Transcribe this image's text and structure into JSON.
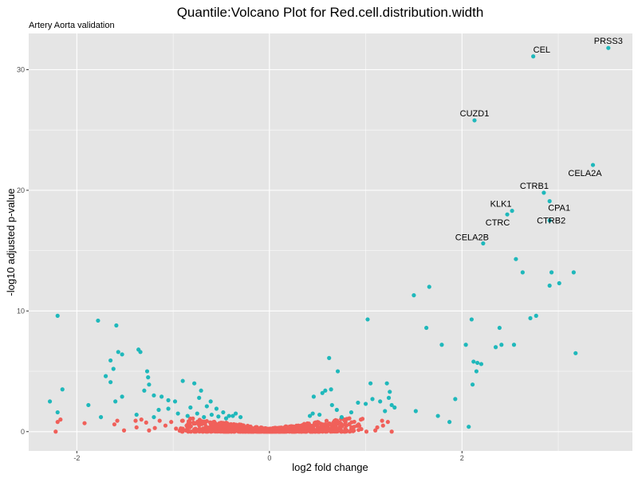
{
  "chart_data": {
    "type": "scatter",
    "title": "Quantile:Volcano Plot for Red.cell.distribution.width",
    "subtitle": "Artery Aorta validation",
    "xlabel": "log2 fold change",
    "ylabel": "-log10 adjusted p-value",
    "xlim": [
      -2.5,
      3.77
    ],
    "ylim": [
      -1.6,
      33.0
    ],
    "x_ticks": [
      -2,
      0,
      2
    ],
    "x_tick_labels": [
      "-2",
      "0",
      "2"
    ],
    "y_ticks": [
      0,
      10,
      20,
      30
    ],
    "y_tick_labels": [
      "0",
      "10",
      "20",
      "30"
    ],
    "grid": true,
    "colors": {
      "panel": "#e5e5e5",
      "grid": "#ffffff",
      "significant": "#1fb8bb",
      "not_significant": "#f0605a"
    },
    "labeled_points": [
      {
        "label": "PRSS3",
        "x": 3.52,
        "y": 31.8
      },
      {
        "label": "CEL",
        "x": 2.74,
        "y": 31.1
      },
      {
        "label": "CUZD1",
        "x": 2.13,
        "y": 25.8
      },
      {
        "label": "CELA2A",
        "x": 3.36,
        "y": 22.1
      },
      {
        "label": "CTRB1",
        "x": 2.85,
        "y": 19.8
      },
      {
        "label": "CPA1",
        "x": 2.91,
        "y": 19.1
      },
      {
        "label": "KLK1",
        "x": 2.52,
        "y": 18.3
      },
      {
        "label": "CTRC",
        "x": 2.47,
        "y": 18.0
      },
      {
        "label": "CTRB2",
        "x": 2.91,
        "y": 17.5
      },
      {
        "label": "CELA2B",
        "x": 2.22,
        "y": 15.6
      }
    ],
    "significant_points": [
      [
        -2.2,
        9.6
      ],
      [
        -1.78,
        9.2
      ],
      [
        -1.59,
        8.8
      ],
      [
        -1.36,
        6.8
      ],
      [
        -1.34,
        6.6
      ],
      [
        -1.57,
        6.6
      ],
      [
        -1.53,
        6.4
      ],
      [
        -1.65,
        5.9
      ],
      [
        -1.7,
        4.6
      ],
      [
        -1.62,
        5.2
      ],
      [
        -1.65,
        4.1
      ],
      [
        -1.53,
        2.9
      ],
      [
        -1.27,
        5.0
      ],
      [
        -1.26,
        4.5
      ],
      [
        -1.25,
        3.9
      ],
      [
        -1.3,
        3.4
      ],
      [
        -1.2,
        3.0
      ],
      [
        -1.12,
        2.9
      ],
      [
        -1.05,
        2.6
      ],
      [
        -0.98,
        2.5
      ],
      [
        -0.9,
        4.2
      ],
      [
        -0.78,
        4.0
      ],
      [
        -0.71,
        3.4
      ],
      [
        -0.73,
        2.8
      ],
      [
        -0.82,
        2.0
      ],
      [
        -0.65,
        2.1
      ],
      [
        -0.61,
        2.5
      ],
      [
        -0.55,
        1.9
      ],
      [
        -0.48,
        1.6
      ],
      [
        -0.42,
        1.3
      ],
      [
        -1.15,
        1.8
      ],
      [
        -1.05,
        1.9
      ],
      [
        -0.95,
        1.5
      ],
      [
        -1.38,
        1.4
      ],
      [
        -1.2,
        1.2
      ],
      [
        -0.85,
        1.3
      ],
      [
        -0.75,
        1.5
      ],
      [
        -0.68,
        1.2
      ],
      [
        -0.6,
        1.4
      ],
      [
        -0.35,
        1.5
      ],
      [
        -0.45,
        1.1
      ],
      [
        -0.3,
        1.2
      ],
      [
        -2.28,
        2.5
      ],
      [
        -2.15,
        3.5
      ],
      [
        -2.2,
        1.6
      ],
      [
        -1.88,
        2.2
      ],
      [
        -1.6,
        2.5
      ],
      [
        -1.75,
        1.2
      ],
      [
        -0.53,
        1.25
      ],
      [
        -0.38,
        1.3
      ],
      [
        0.62,
        6.1
      ],
      [
        0.71,
        5.0
      ],
      [
        0.64,
        3.5
      ],
      [
        0.58,
        3.4
      ],
      [
        0.55,
        3.2
      ],
      [
        0.52,
        1.4
      ],
      [
        0.46,
        2.9
      ],
      [
        0.45,
        1.5
      ],
      [
        0.42,
        1.3
      ],
      [
        0.65,
        2.2
      ],
      [
        0.7,
        1.8
      ],
      [
        0.75,
        1.2
      ],
      [
        0.85,
        1.6
      ],
      [
        1.02,
        9.3
      ],
      [
        1.05,
        4.0
      ],
      [
        1.07,
        2.7
      ],
      [
        1.0,
        2.3
      ],
      [
        0.92,
        2.4
      ],
      [
        1.22,
        4.0
      ],
      [
        1.25,
        3.3
      ],
      [
        1.24,
        2.8
      ],
      [
        1.27,
        2.2
      ],
      [
        1.3,
        2.0
      ],
      [
        1.15,
        2.5
      ],
      [
        1.2,
        1.7
      ],
      [
        1.5,
        11.3
      ],
      [
        1.66,
        12.0
      ],
      [
        1.63,
        8.6
      ],
      [
        1.79,
        7.2
      ],
      [
        1.52,
        1.7
      ],
      [
        1.75,
        1.3
      ],
      [
        1.93,
        2.7
      ],
      [
        1.87,
        0.8
      ],
      [
        2.04,
        7.2
      ],
      [
        2.1,
        9.3
      ],
      [
        2.12,
        5.8
      ],
      [
        2.16,
        5.7
      ],
      [
        2.2,
        5.6
      ],
      [
        2.15,
        5.0
      ],
      [
        2.11,
        3.9
      ],
      [
        2.07,
        0.4
      ],
      [
        2.35,
        7.0
      ],
      [
        2.39,
        8.6
      ],
      [
        2.41,
        7.2
      ],
      [
        2.54,
        7.2
      ],
      [
        2.56,
        14.3
      ],
      [
        2.63,
        13.2
      ],
      [
        2.71,
        9.4
      ],
      [
        2.77,
        9.6
      ],
      [
        2.93,
        13.2
      ],
      [
        2.91,
        12.1
      ],
      [
        3.01,
        12.3
      ],
      [
        3.16,
        13.2
      ],
      [
        3.18,
        6.5
      ]
    ],
    "nonsignificant_points": [
      [
        -2.22,
        0.0
      ],
      [
        -2.2,
        0.8
      ],
      [
        -1.92,
        0.7
      ],
      [
        -1.51,
        0.1
      ],
      [
        -1.39,
        0.9
      ],
      [
        -1.33,
        1.0
      ],
      [
        -1.38,
        0.35
      ],
      [
        -1.28,
        0.75
      ],
      [
        -1.25,
        0.1
      ],
      [
        -1.19,
        0.3
      ],
      [
        -1.08,
        0.5
      ],
      [
        -1.14,
        0.9
      ],
      [
        -1.02,
        0.8
      ],
      [
        -0.97,
        0.25
      ],
      [
        -0.9,
        0.9
      ],
      [
        -0.86,
        0.5
      ],
      [
        -1.61,
        0.6
      ],
      [
        -1.58,
        0.9
      ],
      [
        -2.17,
        1.0
      ],
      [
        -0.79,
        0.75
      ],
      [
        0.79,
        0.8
      ],
      [
        0.88,
        0.4
      ],
      [
        0.95,
        1.0
      ],
      [
        0.83,
        1.1
      ],
      [
        1.12,
        0.35
      ],
      [
        1.18,
        0.5
      ],
      [
        1.27,
        0.0
      ],
      [
        1.17,
        0.9
      ],
      [
        1.1,
        0.1
      ],
      [
        1.23,
        0.8
      ]
    ]
  }
}
